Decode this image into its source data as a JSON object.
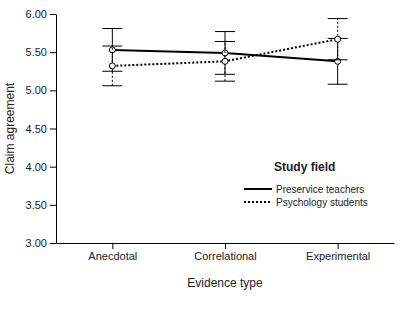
{
  "chart_data": {
    "type": "line",
    "categories": [
      "Anecdotal",
      "Correlational",
      "Experimental"
    ],
    "x_label": "Evidence type",
    "y_label": "Claim agreement",
    "legend_title": "Study field",
    "legend": "lower right",
    "marker": "circle",
    "series": [
      {
        "name": "Preservice teachers",
        "color": "#000000",
        "line_style": "solid",
        "values": [
          5.53,
          5.49,
          5.38
        ],
        "errors": [
          0.28,
          0.28,
          0.3
        ]
      },
      {
        "name": "Psychology students",
        "color": "#000000",
        "line_style": "dotted",
        "values": [
          5.32,
          5.38,
          5.67
        ],
        "errors": [
          0.26,
          0.26,
          0.27
        ]
      }
    ],
    "ylim": [
      3,
      6
    ],
    "yticks": [
      {
        "value": 3,
        "label": "3.00"
      },
      {
        "value": 3.5,
        "label": "3.50"
      },
      {
        "value": 4,
        "label": "4.00"
      },
      {
        "value": 4.5,
        "label": "4.50"
      },
      {
        "value": 5,
        "label": "5.00"
      },
      {
        "value": 5.5,
        "label": "5.50"
      },
      {
        "value": 6,
        "label": "6.00"
      }
    ]
  }
}
